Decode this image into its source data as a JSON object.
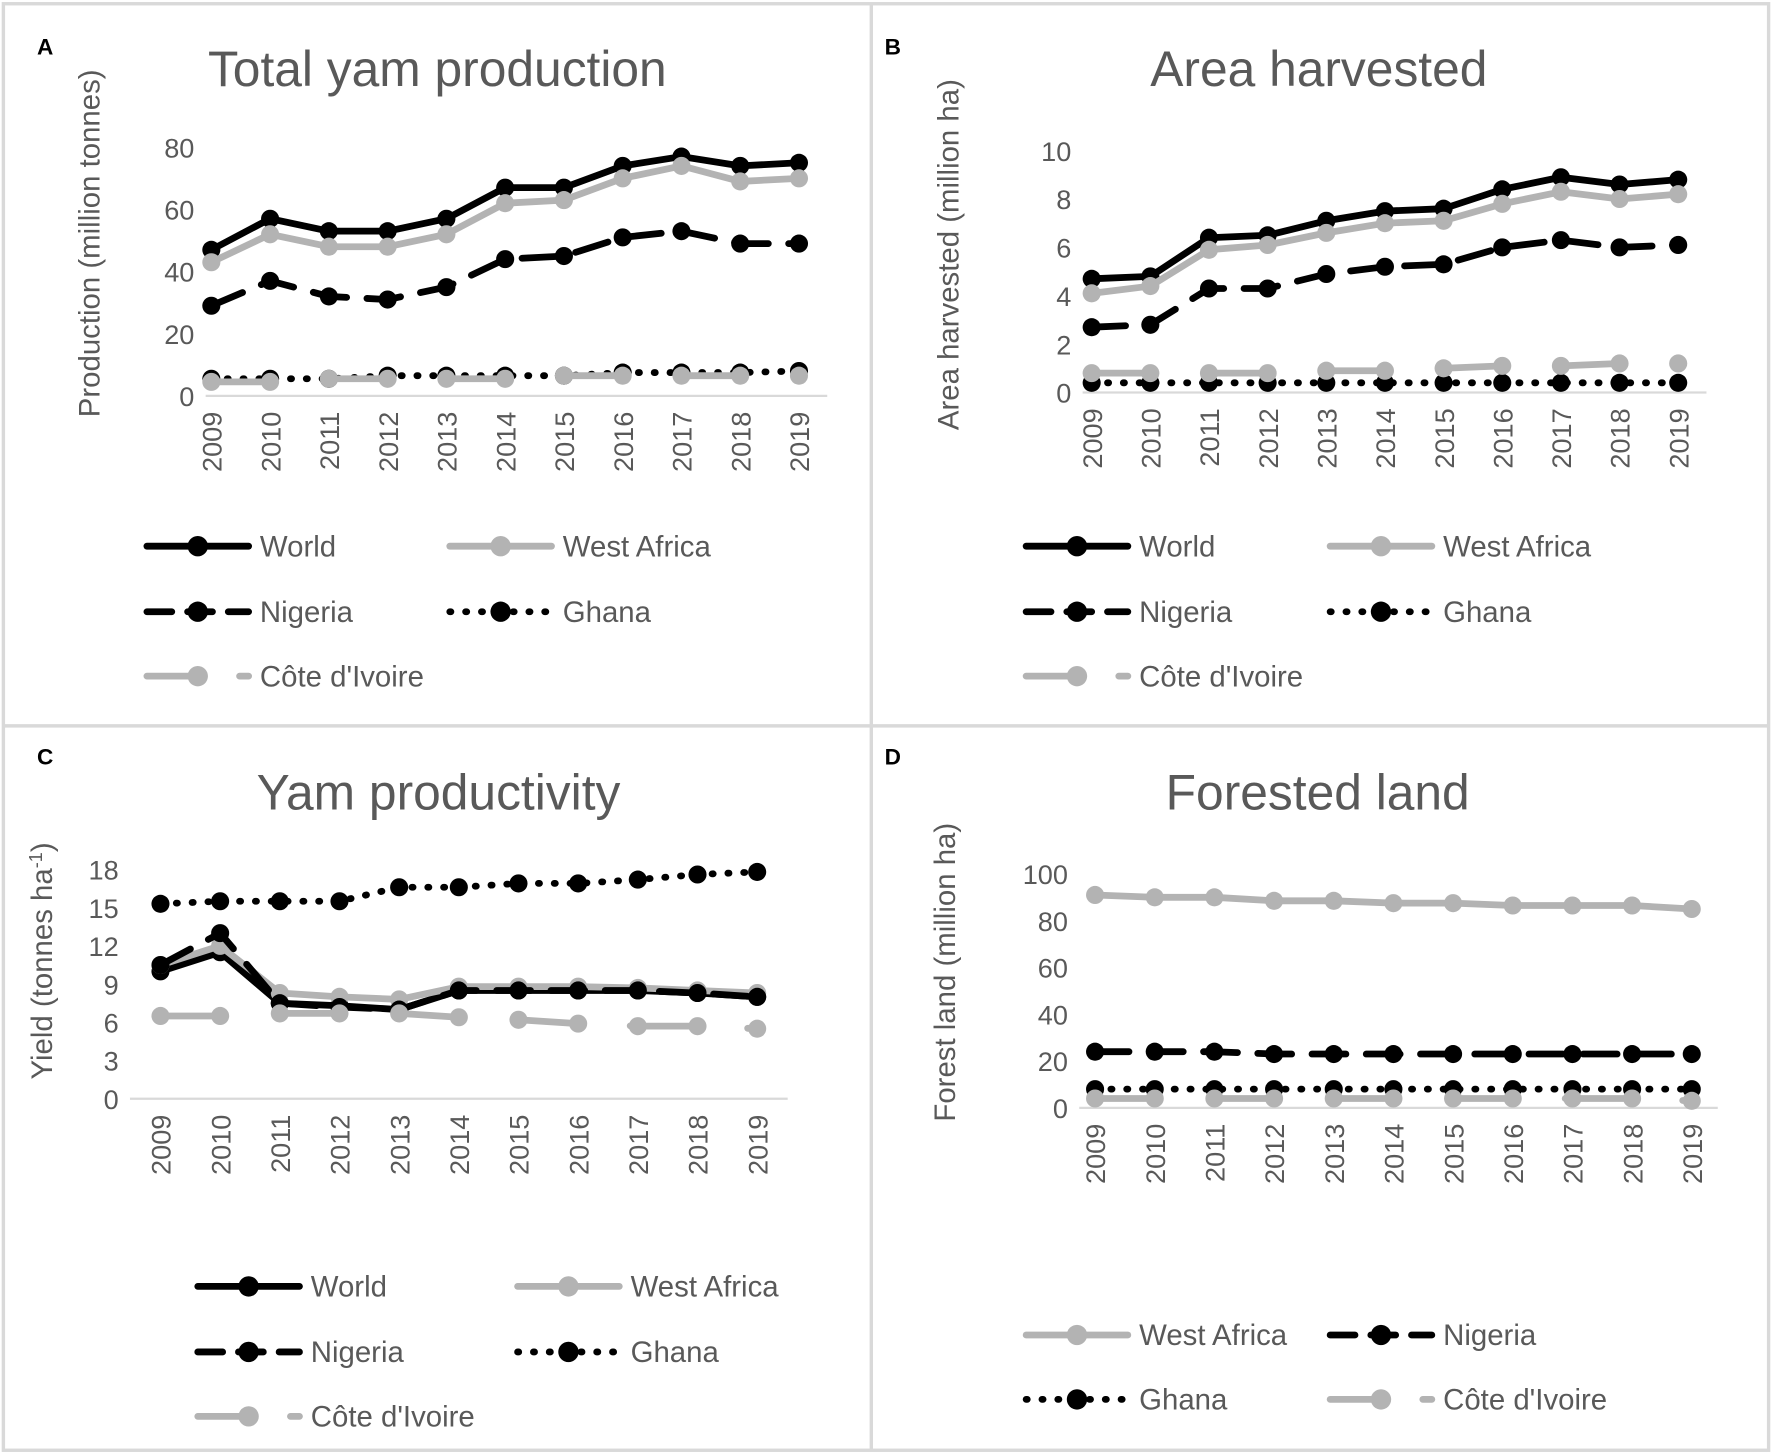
{
  "colors": {
    "black": "#000000",
    "gray": "#b3b3b3",
    "text": "#595959",
    "border": "#d9d9d9"
  },
  "chart_data": [
    {
      "panel": "A",
      "type": "line",
      "title": "Total yam production",
      "ylabel": "Production (million tonnes)",
      "ylim": [
        0,
        80
      ],
      "yticks": [
        0,
        20,
        40,
        60,
        80
      ],
      "categories": [
        "2009",
        "2010",
        "2011",
        "2012",
        "2013",
        "2014",
        "2015",
        "2016",
        "2017",
        "2018",
        "2019"
      ],
      "series": [
        {
          "name": "World",
          "style": "solid-black",
          "values": [
            47,
            57,
            53,
            53,
            57,
            67,
            67,
            74,
            77,
            74,
            75
          ]
        },
        {
          "name": "West Africa",
          "style": "solid-gray",
          "values": [
            43,
            52,
            48,
            48,
            52,
            62,
            63,
            70,
            74,
            69,
            70
          ]
        },
        {
          "name": "Nigeria",
          "style": "dash-black",
          "values": [
            29,
            37,
            32,
            31,
            35,
            44,
            45,
            51,
            53,
            49,
            49
          ]
        },
        {
          "name": "Ghana",
          "style": "dot-black",
          "values": [
            5.5,
            5.5,
            5.5,
            6.5,
            6.5,
            6.5,
            6.5,
            7.5,
            7.5,
            7.5,
            8
          ]
        },
        {
          "name": "Côte d'Ivoire",
          "style": "longdash-gray",
          "values": [
            4.5,
            4.5,
            5.5,
            5.5,
            5.5,
            5.5,
            6.5,
            6.5,
            6.5,
            6.5,
            6.5
          ]
        }
      ]
    },
    {
      "panel": "B",
      "type": "line",
      "title": "Area harvested",
      "ylabel": "Area harvested (million ha)",
      "ylim": [
        0,
        10
      ],
      "yticks": [
        0,
        2,
        4,
        6,
        8,
        10
      ],
      "categories": [
        "2009",
        "2010",
        "2011",
        "2012",
        "2013",
        "2014",
        "2015",
        "2016",
        "2017",
        "2018",
        "2019"
      ],
      "series": [
        {
          "name": "World",
          "style": "solid-black",
          "values": [
            4.7,
            4.8,
            6.4,
            6.5,
            7.1,
            7.5,
            7.6,
            8.4,
            8.9,
            8.6,
            8.8
          ]
        },
        {
          "name": "West Africa",
          "style": "solid-gray",
          "values": [
            4.1,
            4.4,
            5.9,
            6.1,
            6.6,
            7.0,
            7.1,
            7.8,
            8.3,
            8.0,
            8.2
          ]
        },
        {
          "name": "Nigeria",
          "style": "dash-black",
          "values": [
            2.7,
            2.8,
            4.3,
            4.3,
            4.9,
            5.2,
            5.3,
            6.0,
            6.3,
            6.0,
            6.1
          ]
        },
        {
          "name": "Ghana",
          "style": "dot-black",
          "values": [
            0.4,
            0.4,
            0.4,
            0.4,
            0.4,
            0.4,
            0.4,
            0.4,
            0.4,
            0.4,
            0.4
          ]
        },
        {
          "name": "Côte d'Ivoire",
          "style": "longdash-gray",
          "values": [
            0.8,
            0.8,
            0.8,
            0.8,
            0.9,
            0.9,
            1.0,
            1.1,
            1.1,
            1.2,
            1.2
          ]
        }
      ]
    },
    {
      "panel": "C",
      "type": "line",
      "title": "Yam productivity",
      "ylabel": "Yield (tonnes ha",
      "ylabel_sup": "-1",
      "ylabel_end": ")",
      "ylim": [
        0,
        18
      ],
      "yticks": [
        0,
        3,
        6,
        9,
        12,
        15,
        18
      ],
      "categories": [
        "2009",
        "2010",
        "2011",
        "2012",
        "2013",
        "2014",
        "2015",
        "2016",
        "2017",
        "2018",
        "2019"
      ],
      "series": [
        {
          "name": "World",
          "style": "solid-black",
          "values": [
            10,
            11.5,
            7.5,
            7.3,
            7.0,
            8.5,
            8.5,
            8.5,
            8.5,
            8.3,
            8.0
          ]
        },
        {
          "name": "West Africa",
          "style": "solid-gray",
          "values": [
            10.5,
            12,
            8.3,
            8.0,
            7.8,
            8.8,
            8.8,
            8.8,
            8.7,
            8.5,
            8.3
          ]
        },
        {
          "name": "Nigeria",
          "style": "dash-black",
          "values": [
            10.5,
            13,
            7.5,
            7.2,
            7.0,
            8.5,
            8.5,
            8.5,
            8.5,
            8.3,
            8.0
          ]
        },
        {
          "name": "Ghana",
          "style": "dot-black",
          "values": [
            15.3,
            15.5,
            15.5,
            15.5,
            16.6,
            16.6,
            16.9,
            16.9,
            17.2,
            17.6,
            17.8
          ]
        },
        {
          "name": "Côte d'Ivoire",
          "style": "longdash-gray",
          "values": [
            6.5,
            6.5,
            6.7,
            6.7,
            6.7,
            6.4,
            6.2,
            5.9,
            5.7,
            5.7,
            5.5
          ]
        }
      ]
    },
    {
      "panel": "D",
      "type": "line",
      "title": "Forested land",
      "ylabel": "Forest land (million ha)",
      "ylim": [
        0,
        100
      ],
      "yticks": [
        0,
        20,
        40,
        60,
        80,
        100
      ],
      "categories": [
        "2009",
        "2010",
        "2011",
        "2012",
        "2013",
        "2014",
        "2015",
        "2016",
        "2017",
        "2018",
        "2019"
      ],
      "series": [
        {
          "name": "West Africa",
          "style": "solid-gray",
          "values": [
            91,
            90,
            90,
            88.5,
            88.5,
            87.5,
            87.5,
            86.5,
            86.5,
            86.5,
            85
          ]
        },
        {
          "name": "Nigeria",
          "style": "dash-black",
          "values": [
            24,
            24,
            24,
            23,
            23,
            23,
            23,
            23,
            23,
            23,
            23
          ]
        },
        {
          "name": "Ghana",
          "style": "dot-black",
          "values": [
            8,
            8,
            8,
            8,
            8,
            8,
            8,
            8,
            8,
            8,
            8
          ]
        },
        {
          "name": "Côte d'Ivoire",
          "style": "longdash-gray",
          "values": [
            4,
            4,
            4,
            4,
            4,
            4,
            4,
            4,
            4,
            4,
            3
          ]
        }
      ]
    }
  ]
}
